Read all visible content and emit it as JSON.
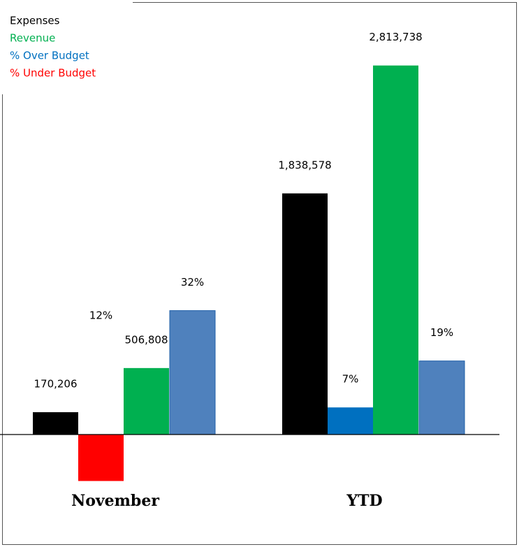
{
  "chart_data": {
    "type": "bar",
    "categories": [
      "November",
      "YTD"
    ],
    "series": [
      {
        "name": "Expenses",
        "color": "#000000",
        "values": [
          170206,
          1838578
        ],
        "value_labels": [
          "170,206",
          "1,838,578"
        ]
      },
      {
        "name": "Revenue",
        "color": "#00b050",
        "values": [
          506808,
          2813738
        ],
        "value_labels": [
          "506,808",
          "2,813,738"
        ]
      },
      {
        "name": "% Over Budget",
        "color": "#0070c0",
        "axis": "y2",
        "values": [
          null,
          7
        ],
        "value_labels": [
          null,
          "7%"
        ]
      },
      {
        "name": "% Under Budget",
        "color": "#ff0000",
        "axis": "y2",
        "values": [
          -12,
          null
        ],
        "value_labels": [
          "12%",
          null
        ]
      },
      {
        "color": "#4f81bd",
        "axis": "y2",
        "values": [
          32,
          19
        ],
        "value_labels": [
          "32%",
          "19%"
        ]
      }
    ],
    "ylim": [
      0,
      3100000
    ],
    "y2lim": [
      0,
      105
    ],
    "legend": "upper left"
  }
}
